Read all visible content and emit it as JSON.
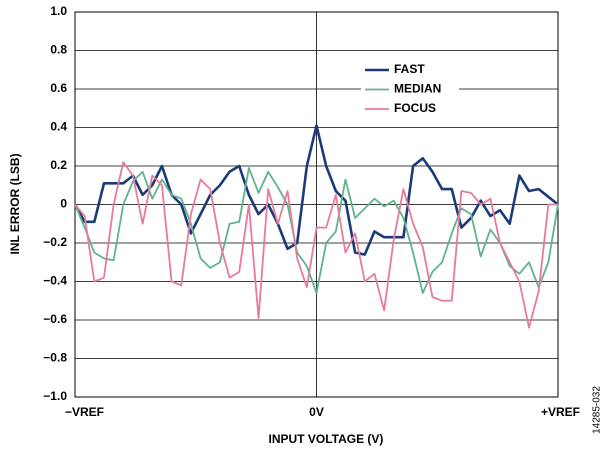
{
  "chart_data": {
    "type": "line",
    "xlabel": "INPUT VOLTAGE (V)",
    "ylabel": "INL ERROR (LSB)",
    "side_note": "14285-032",
    "xlim": [
      -1,
      1
    ],
    "ylim": [
      -1,
      1
    ],
    "xticks": [
      {
        "value": -1,
        "label": "−VREF"
      },
      {
        "value": 0,
        "label": "0V"
      },
      {
        "value": 1,
        "label": "+VREF"
      }
    ],
    "yticks": [
      {
        "value": -1,
        "label": "−1.0"
      },
      {
        "value": -0.8,
        "label": "−0.8"
      },
      {
        "value": -0.6,
        "label": "−0.6"
      },
      {
        "value": -0.4,
        "label": "−0.4"
      },
      {
        "value": -0.2,
        "label": "−0.2"
      },
      0,
      0.2,
      0.4,
      0.6,
      0.8,
      {
        "value": 1,
        "label": "1.0"
      }
    ],
    "grid": true,
    "legend": "upper right",
    "x": [
      -1,
      -0.96,
      -0.92,
      -0.88,
      -0.84,
      -0.8,
      -0.76,
      -0.72,
      -0.68,
      -0.64,
      -0.6,
      -0.56,
      -0.52,
      -0.48,
      -0.44,
      -0.4,
      -0.36,
      -0.32,
      -0.28,
      -0.24,
      -0.2,
      -0.16,
      -0.12,
      -0.08,
      -0.04,
      0,
      0.04,
      0.08,
      0.12,
      0.16,
      0.2,
      0.24,
      0.28,
      0.32,
      0.36,
      0.4,
      0.44,
      0.48,
      0.52,
      0.56,
      0.6,
      0.64,
      0.68,
      0.72,
      0.76,
      0.8,
      0.84,
      0.88,
      0.92,
      0.96,
      1
    ],
    "series": [
      {
        "name": "FAST",
        "color": "#1b3a7a",
        "values": [
          0,
          -0.09,
          -0.09,
          0.11,
          0.11,
          0.11,
          0.15,
          0.05,
          0.1,
          0.2,
          0.05,
          0.0,
          -0.15,
          -0.05,
          0.05,
          0.1,
          0.17,
          0.2,
          0.05,
          -0.05,
          0.0,
          -0.1,
          -0.23,
          -0.2,
          0.2,
          0.41,
          0.2,
          0.07,
          0.02,
          -0.25,
          -0.26,
          -0.14,
          -0.17,
          -0.17,
          -0.17,
          0.2,
          0.24,
          0.17,
          0.08,
          0.08,
          -0.12,
          -0.07,
          0.02,
          -0.06,
          -0.03,
          -0.1,
          0.15,
          0.07,
          0.08,
          0.04,
          0
        ]
      },
      {
        "name": "MEDIAN",
        "color": "#5fb38d",
        "values": [
          0,
          -0.12,
          -0.25,
          -0.28,
          -0.29,
          0.0,
          0.12,
          0.17,
          0.03,
          0.13,
          0.05,
          0.03,
          -0.1,
          -0.28,
          -0.33,
          -0.3,
          -0.1,
          -0.09,
          0.19,
          0.06,
          0.17,
          0.09,
          0.0,
          -0.25,
          -0.32,
          -0.46,
          -0.2,
          -0.14,
          0.13,
          -0.07,
          -0.02,
          0.03,
          -0.01,
          0.02,
          -0.07,
          -0.25,
          -0.46,
          -0.35,
          -0.3,
          -0.15,
          -0.02,
          -0.05,
          -0.27,
          -0.13,
          -0.2,
          -0.32,
          -0.36,
          -0.3,
          -0.43,
          -0.3,
          0
        ]
      },
      {
        "name": "FOCUS",
        "color": "#e87a9a",
        "values": [
          0,
          -0.06,
          -0.4,
          -0.38,
          0.0,
          0.22,
          0.15,
          -0.1,
          0.15,
          0.1,
          -0.4,
          -0.42,
          -0.05,
          0.13,
          0.08,
          -0.2,
          -0.38,
          -0.35,
          0.0,
          -0.59,
          0.08,
          -0.1,
          0.07,
          -0.28,
          -0.43,
          -0.12,
          -0.12,
          0.05,
          -0.25,
          -0.15,
          -0.4,
          -0.36,
          -0.55,
          -0.18,
          0.08,
          -0.1,
          -0.22,
          -0.48,
          -0.5,
          -0.5,
          0.07,
          0.06,
          0.0,
          0.03,
          -0.2,
          -0.3,
          -0.4,
          -0.64,
          -0.45,
          0.0,
          0
        ]
      }
    ]
  }
}
